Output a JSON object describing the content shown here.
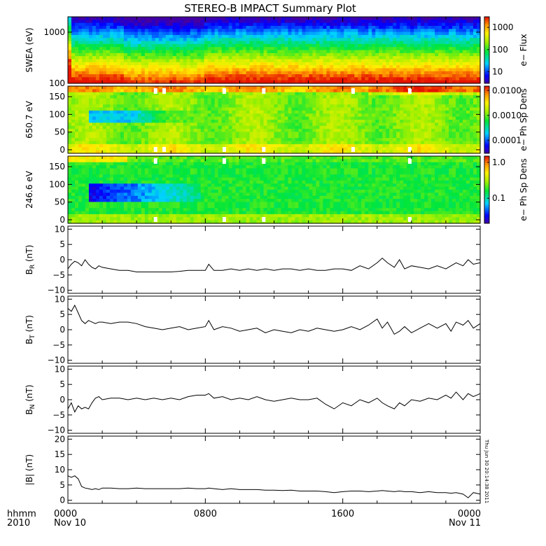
{
  "title": "STEREO-B IMPACT Summary Plot",
  "footer": {
    "hhmm": "hhmm",
    "year": "2010",
    "date_start": "Nov 10",
    "date_end": "Nov 11",
    "stamp": "Thu Jun 30 20:14:38 2011"
  },
  "x_axis": {
    "ticks": [
      {
        "hours": 0,
        "label": "0000"
      },
      {
        "hours": 8,
        "label": "0800"
      },
      {
        "hours": 16,
        "label": "1600"
      },
      {
        "hours": 24,
        "label": "0000"
      }
    ],
    "range_hours": [
      0,
      24
    ]
  },
  "colors": {
    "line": "#000000",
    "frame": "#000000"
  },
  "chart_data": [
    {
      "type": "heatmap",
      "id": "swea",
      "ylabel": "SWEA (eV)",
      "yscale": "log",
      "ylim": [
        100,
        2000
      ],
      "yticks": [
        {
          "v": 100,
          "label": "100"
        },
        {
          "v": 1000,
          "label": "1000"
        }
      ],
      "colorbar": {
        "label": "e− Flux",
        "scale": "log",
        "range": [
          3,
          3000
        ],
        "ticks": [
          {
            "v": 10,
            "label": "10"
          },
          {
            "v": 100,
            "label": "100"
          },
          {
            "v": 1000,
            "label": "1000"
          }
        ]
      }
    },
    {
      "type": "heatmap",
      "id": "pad650",
      "ylabel": "650.7 eV",
      "yscale": "linear",
      "ylim": [
        -10,
        180
      ],
      "yticks": [
        {
          "v": 0,
          "label": "0"
        },
        {
          "v": 50,
          "label": "50"
        },
        {
          "v": 100,
          "label": "100"
        },
        {
          "v": 150,
          "label": "150"
        }
      ],
      "colorbar": {
        "label": "e− Ph Sp Dens",
        "scale": "log",
        "range": [
          3e-05,
          0.015
        ],
        "ticks": [
          {
            "v": 0.0001,
            "label": "0.0001"
          },
          {
            "v": 0.001,
            "label": "0.0010"
          },
          {
            "v": 0.01,
            "label": "0.0100"
          }
        ]
      }
    },
    {
      "type": "heatmap",
      "id": "pad246",
      "ylabel": "246.6 eV",
      "yscale": "linear",
      "ylim": [
        -10,
        180
      ],
      "yticks": [
        {
          "v": 0,
          "label": "0"
        },
        {
          "v": 50,
          "label": "50"
        },
        {
          "v": 100,
          "label": "100"
        },
        {
          "v": 150,
          "label": "150"
        }
      ],
      "colorbar": {
        "label": "e− Ph Sp Dens",
        "scale": "log",
        "range": [
          0.02,
          1.5
        ],
        "ticks": [
          {
            "v": 0.1,
            "label": "0.1"
          },
          {
            "v": 1.0,
            "label": "1.0"
          }
        ]
      }
    },
    {
      "type": "line",
      "id": "br",
      "ylabel": "B",
      "ysub": "R",
      "yunit": " (nT)",
      "ylim": [
        -11,
        11
      ],
      "yticks": [
        {
          "v": -10,
          "label": "−10"
        },
        {
          "v": -5,
          "label": "−5"
        },
        {
          "v": 0,
          "label": "0"
        },
        {
          "v": 5,
          "label": "5"
        },
        {
          "v": 10,
          "label": "10"
        }
      ],
      "x": [
        0,
        0.2,
        0.4,
        0.6,
        0.8,
        1,
        1.2,
        1.4,
        1.6,
        1.8,
        2,
        2.5,
        3,
        3.5,
        4,
        4.5,
        5,
        5.5,
        6,
        6.5,
        7,
        7.5,
        8,
        8.2,
        8.5,
        9,
        9.5,
        10,
        10.5,
        11,
        11.5,
        12,
        12.5,
        13,
        13.5,
        14,
        14.5,
        15,
        15.5,
        16,
        16.5,
        17,
        17.5,
        18,
        18.3,
        18.6,
        19,
        19.3,
        19.6,
        20,
        20.5,
        21,
        21.5,
        22,
        22.3,
        22.6,
        23,
        23.3,
        23.6,
        24
      ],
      "values": [
        -3.0,
        -1.5,
        -0.5,
        -1.0,
        -2.0,
        0.0,
        -1.5,
        -2.5,
        -3.0,
        -2.0,
        -2.5,
        -3.0,
        -3.5,
        -3.5,
        -4.0,
        -4.0,
        -4.0,
        -4.0,
        -4.0,
        -3.8,
        -3.5,
        -3.5,
        -3.5,
        -1.5,
        -3.5,
        -3.5,
        -3.0,
        -3.5,
        -3.0,
        -3.5,
        -3.0,
        -3.5,
        -3.0,
        -3.0,
        -3.5,
        -3.0,
        -3.5,
        -3.5,
        -3.0,
        -3.0,
        -3.5,
        -2.0,
        -3.0,
        -1.0,
        0.5,
        -1.0,
        -2.5,
        0.0,
        -3.0,
        -2.0,
        -2.5,
        -3.0,
        -2.0,
        -3.0,
        -2.0,
        -1.0,
        -2.0,
        0.0,
        -1.5,
        -1.0
      ]
    },
    {
      "type": "line",
      "id": "bt",
      "ylabel": "B",
      "ysub": "T",
      "yunit": " (nT)",
      "ylim": [
        -11,
        11
      ],
      "yticks": [
        {
          "v": -10,
          "label": "−10"
        },
        {
          "v": -5,
          "label": "−5"
        },
        {
          "v": 0,
          "label": "0"
        },
        {
          "v": 5,
          "label": "5"
        },
        {
          "v": 10,
          "label": "10"
        }
      ],
      "x": [
        0,
        0.2,
        0.4,
        0.6,
        0.8,
        1,
        1.2,
        1.4,
        1.6,
        1.8,
        2,
        2.5,
        3,
        3.5,
        4,
        4.5,
        5,
        5.5,
        6,
        6.5,
        7,
        7.5,
        8,
        8.2,
        8.5,
        9,
        9.5,
        10,
        10.5,
        11,
        11.5,
        12,
        12.5,
        13,
        13.5,
        14,
        14.5,
        15,
        15.5,
        16,
        16.5,
        17,
        17.5,
        18,
        18.3,
        18.6,
        19,
        19.3,
        19.6,
        20,
        20.5,
        21,
        21.5,
        22,
        22.3,
        22.6,
        23,
        23.3,
        23.6,
        24
      ],
      "values": [
        7.0,
        6.0,
        8.0,
        5.5,
        3.0,
        2.0,
        3.0,
        2.5,
        2.0,
        2.5,
        2.5,
        2.0,
        2.5,
        2.5,
        2.0,
        1.0,
        0.5,
        0.0,
        0.5,
        1.0,
        0.0,
        0.5,
        1.0,
        3.0,
        0.0,
        1.0,
        0.5,
        -0.5,
        0.0,
        0.5,
        -1.0,
        0.0,
        -0.5,
        -1.0,
        0.0,
        -0.5,
        0.5,
        0.0,
        -0.5,
        0.0,
        1.0,
        0.0,
        1.5,
        3.5,
        0.5,
        2.5,
        -1.5,
        -0.5,
        1.0,
        -1.0,
        0.5,
        2.0,
        0.5,
        2.0,
        -0.5,
        2.5,
        1.5,
        3.0,
        0.5,
        2.0
      ]
    },
    {
      "type": "line",
      "id": "bn",
      "ylabel": "B",
      "ysub": "N",
      "yunit": " (nT)",
      "ylim": [
        -11,
        11
      ],
      "yticks": [
        {
          "v": -10,
          "label": "−10"
        },
        {
          "v": -5,
          "label": "−5"
        },
        {
          "v": 0,
          "label": "0"
        },
        {
          "v": 5,
          "label": "5"
        },
        {
          "v": 10,
          "label": "10"
        }
      ],
      "x": [
        0,
        0.2,
        0.4,
        0.6,
        0.8,
        1,
        1.2,
        1.4,
        1.6,
        1.8,
        2,
        2.5,
        3,
        3.5,
        4,
        4.5,
        5,
        5.5,
        6,
        6.5,
        7,
        7.5,
        8,
        8.2,
        8.5,
        9,
        9.5,
        10,
        10.5,
        11,
        11.5,
        12,
        12.5,
        13,
        13.5,
        14,
        14.5,
        15,
        15.5,
        16,
        16.5,
        17,
        17.5,
        18,
        18.3,
        18.6,
        19,
        19.3,
        19.6,
        20,
        20.5,
        21,
        21.5,
        22,
        22.3,
        22.6,
        23,
        23.3,
        23.6,
        24
      ],
      "values": [
        -3.0,
        -1.0,
        -4.0,
        -2.0,
        -3.0,
        -2.5,
        -3.0,
        -1.0,
        0.5,
        1.0,
        0.0,
        0.5,
        0.5,
        0.0,
        0.5,
        0.0,
        0.5,
        0.0,
        0.5,
        0.0,
        1.0,
        1.5,
        1.5,
        2.0,
        0.5,
        1.0,
        0.0,
        0.5,
        0.0,
        1.0,
        0.0,
        -0.5,
        0.0,
        0.5,
        0.0,
        0.0,
        0.5,
        -1.5,
        -3.0,
        -1.0,
        -2.0,
        0.0,
        -1.0,
        0.5,
        -1.0,
        -2.0,
        -3.0,
        -1.0,
        -2.0,
        0.0,
        -0.5,
        0.5,
        0.0,
        1.5,
        0.5,
        2.5,
        0.0,
        2.0,
        1.0,
        2.0
      ]
    },
    {
      "type": "line",
      "id": "babs",
      "ylabel": "|B|",
      "ysub": "",
      "yunit": " (nT)",
      "ylim": [
        -1,
        21
      ],
      "yticks": [
        {
          "v": 0,
          "label": "0"
        },
        {
          "v": 5,
          "label": "5"
        },
        {
          "v": 10,
          "label": "10"
        },
        {
          "v": 15,
          "label": "15"
        },
        {
          "v": 20,
          "label": "20"
        }
      ],
      "x": [
        0,
        0.2,
        0.4,
        0.6,
        0.8,
        1,
        1.2,
        1.4,
        1.6,
        1.8,
        2,
        2.5,
        3,
        3.5,
        4,
        4.5,
        5,
        5.5,
        6,
        6.5,
        7,
        7.5,
        8,
        8.2,
        8.5,
        9,
        9.5,
        10,
        10.5,
        11,
        11.5,
        12,
        12.5,
        13,
        13.5,
        14,
        14.5,
        15,
        15.5,
        16,
        16.5,
        17,
        17.5,
        18,
        18.3,
        18.6,
        19,
        19.3,
        19.6,
        20,
        20.5,
        21,
        21.5,
        22,
        22.3,
        22.6,
        23,
        23.3,
        23.6,
        24
      ],
      "values": [
        8.0,
        7.5,
        8.0,
        7.0,
        4.5,
        4.0,
        3.8,
        3.5,
        3.8,
        3.5,
        4.0,
        4.0,
        3.8,
        3.8,
        4.0,
        3.8,
        3.8,
        3.8,
        3.8,
        3.8,
        4.0,
        3.8,
        3.8,
        4.0,
        3.8,
        3.5,
        3.8,
        3.5,
        3.5,
        3.5,
        3.3,
        3.3,
        3.2,
        3.3,
        3.0,
        3.0,
        3.0,
        2.8,
        2.5,
        2.8,
        3.0,
        3.0,
        2.8,
        3.0,
        3.2,
        3.0,
        2.8,
        3.0,
        2.8,
        2.8,
        2.5,
        2.8,
        2.5,
        2.5,
        2.3,
        2.5,
        2.0,
        0.8,
        2.5,
        2.0
      ]
    }
  ]
}
